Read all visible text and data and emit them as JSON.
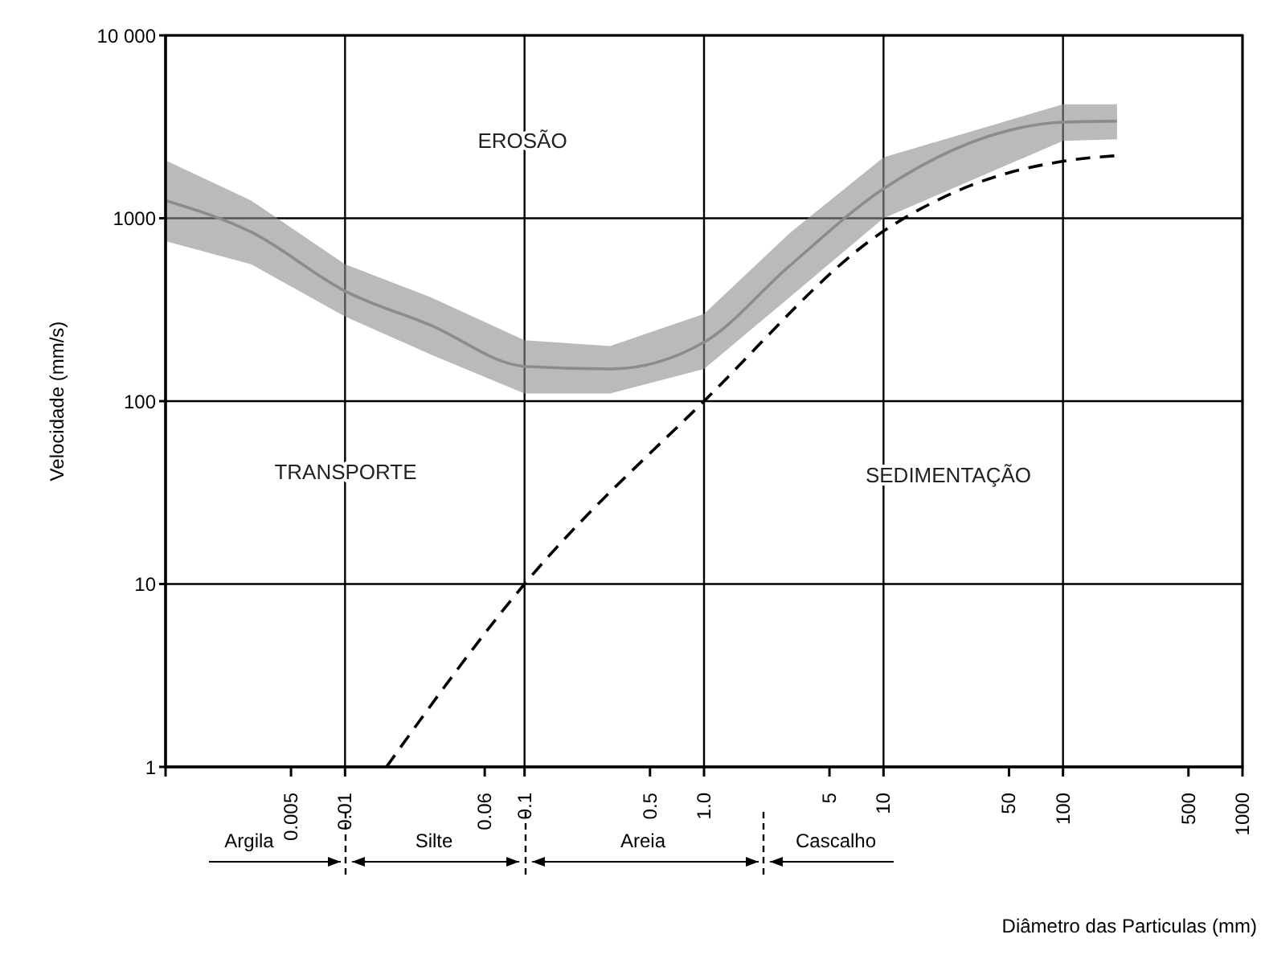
{
  "chart_data": {
    "type": "line",
    "xlabel": "Diâmetro das Particulas (mm)",
    "ylabel": "Velocidade (mm/s)",
    "log": "xy",
    "xlim": [
      0.001,
      1000
    ],
    "ylim": [
      1,
      10000
    ],
    "xticks": [
      {
        "value": 0.001,
        "label": null
      },
      0.005,
      0.01,
      0.06,
      0.1,
      0.5,
      {
        "value": 1,
        "label": "1.0"
      },
      5,
      10,
      50,
      100,
      500,
      1000
    ],
    "yticks": [
      1,
      10,
      100,
      1000,
      {
        "value": 10000,
        "label": "10 000"
      }
    ],
    "grid": true,
    "marker": "none",
    "annotations": [
      "EROSÃO",
      "TRANSPORTE",
      "SEDIMENTAÇÃO",
      "Argila",
      "Silte",
      "Areia",
      "Cascalho"
    ],
    "series": [
      {
        "color": "#8c8c8c",
        "x": [
          0.001,
          0.003,
          0.01,
          0.03,
          0.1,
          0.3,
          1,
          3,
          10,
          100,
          200
        ],
        "values": [
          1250,
          840,
          400,
          260,
          155,
          150,
          210,
          550,
          1450,
          3350,
          3400
        ],
        "lower": [
          750,
          560,
          290,
          180,
          110,
          110,
          150,
          370,
          1000,
          2650,
          2700
        ],
        "upper": [
          2070,
          1250,
          560,
          370,
          215,
          200,
          300,
          830,
          2150,
          4200,
          4200
        ]
      },
      {
        "type": "line",
        "color": "#000000",
        "line_style": "dashed",
        "x": [
          0.017,
          0.1,
          1,
          10,
          30,
          100,
          200
        ],
        "values": [
          1,
          10,
          100,
          850,
          1500,
          2050,
          2200
        ]
      }
    ]
  }
}
